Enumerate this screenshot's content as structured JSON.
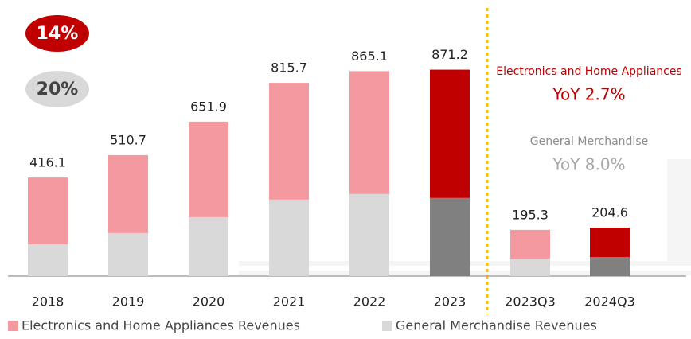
{
  "chart_data": {
    "type": "stacked_bar",
    "categories": [
      "2018",
      "2019",
      "2020",
      "2021",
      "2022",
      "2023",
      "2023Q3",
      "2024Q3"
    ],
    "series": [
      {
        "name": "General Merchandise Revenues",
        "color": "#d9d9d9",
        "highlight_color": "#808080",
        "values": [
          134.5,
          181.6,
          248.9,
          322.9,
          346.5,
          329.7,
          74.0,
          80.0
        ]
      },
      {
        "name": "Electronics and Home Appliances Revenues",
        "color": "#f4999f",
        "highlight_color": "#c00000",
        "values": [
          281.6,
          329.1,
          403.0,
          492.8,
          518.6,
          541.5,
          121.3,
          124.6
        ]
      }
    ],
    "highlight": [
      false,
      false,
      false,
      false,
      false,
      true,
      false,
      true
    ],
    "totals": [
      416.1,
      510.7,
      651.9,
      815.7,
      865.1,
      871.2,
      195.3,
      204.6
    ],
    "ylim": [
      0,
      900
    ],
    "badges": [
      {
        "text": "14%",
        "color": "#c00000"
      },
      {
        "text": "20%",
        "color": "#d9d9d9"
      }
    ],
    "annotations": [
      {
        "text": "Electronics and Home Appliances",
        "color": "#c00000"
      },
      {
        "text": "YoY 2.7%",
        "color": "#c00000"
      },
      {
        "text": "General Merchandise",
        "color": "#8c8c8c"
      },
      {
        "text": "YoY 8.0%",
        "color": "#a6a6a6"
      }
    ]
  }
}
